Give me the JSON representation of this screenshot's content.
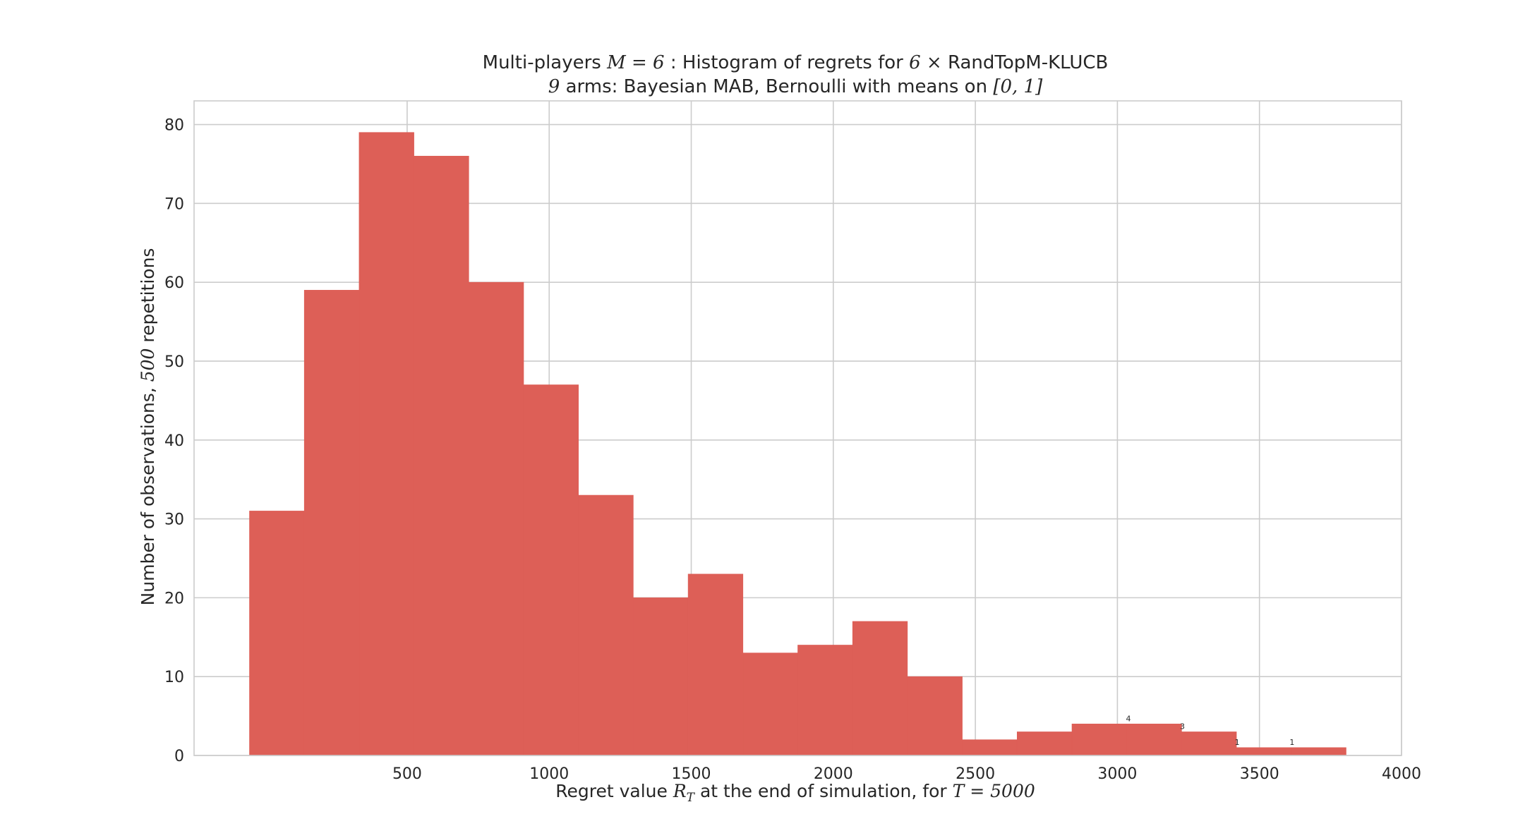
{
  "chart_data": {
    "type": "bar",
    "title": {
      "line1": {
        "pre": "Multi-players ",
        "math1": "M = 6",
        "mid": " : Histogram of regrets for ",
        "math2": "6 ×",
        "post": "  RandTopM-KLUCB"
      },
      "line2": {
        "math1": "9",
        "mid": " arms: Bayesian MAB, Bernoulli with means on ",
        "math2": "[0, 1]"
      }
    },
    "xlabel": {
      "pre": "Regret value ",
      "math1": "R",
      "math1_sub": "T",
      "mid": " at the end of simulation, for ",
      "math2": "T = 5000"
    },
    "ylabel": {
      "pre": "Number of observations, ",
      "math": "500",
      "post": " repetitions"
    },
    "xlim": [
      -250,
      4000
    ],
    "ylim": [
      0,
      83
    ],
    "xticks": [
      500,
      1000,
      1500,
      2000,
      2500,
      3000,
      3500,
      4000
    ],
    "yticks": [
      0,
      10,
      20,
      30,
      40,
      50,
      60,
      70,
      80
    ],
    "grid": true,
    "bar_color": "#dd5f57",
    "bins": [
      {
        "x0": -55,
        "x1": 138,
        "count": 31
      },
      {
        "x0": 138,
        "x1": 331,
        "count": 59
      },
      {
        "x0": 331,
        "x1": 524,
        "count": 79
      },
      {
        "x0": 524,
        "x1": 717,
        "count": 76
      },
      {
        "x0": 717,
        "x1": 910,
        "count": 60
      },
      {
        "x0": 910,
        "x1": 1103,
        "count": 47
      },
      {
        "x0": 1103,
        "x1": 1296,
        "count": 33
      },
      {
        "x0": 1296,
        "x1": 1489,
        "count": 20
      },
      {
        "x0": 1489,
        "x1": 1682,
        "count": 23
      },
      {
        "x0": 1682,
        "x1": 1875,
        "count": 13
      },
      {
        "x0": 1875,
        "x1": 2068,
        "count": 14
      },
      {
        "x0": 2068,
        "x1": 2261,
        "count": 17
      },
      {
        "x0": 2261,
        "x1": 2454,
        "count": 10
      },
      {
        "x0": 2454,
        "x1": 2647,
        "count": 2
      },
      {
        "x0": 2647,
        "x1": 2840,
        "count": 3
      },
      {
        "x0": 2840,
        "x1": 3033,
        "count": 4
      },
      {
        "x0": 3033,
        "x1": 3226,
        "count": 4
      },
      {
        "x0": 3226,
        "x1": 3419,
        "count": 3
      },
      {
        "x0": 3419,
        "x1": 3612,
        "count": 1
      },
      {
        "x0": 3612,
        "x1": 3805,
        "count": 1
      }
    ],
    "annotations": [
      {
        "text": "4",
        "x": 3030,
        "y": 4
      },
      {
        "text": "3",
        "x": 3220,
        "y": 3
      },
      {
        "text": "1",
        "x": 3413,
        "y": 1
      },
      {
        "text": "1",
        "x": 3606,
        "y": 1
      }
    ]
  }
}
